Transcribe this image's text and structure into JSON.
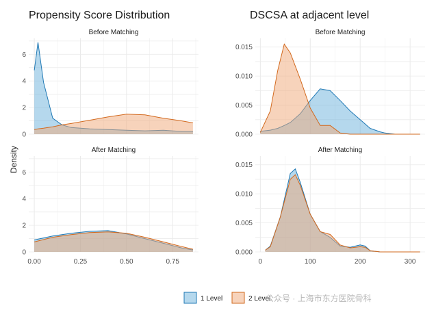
{
  "panels": {
    "left_title": "Propensity Score Distribution",
    "right_title": "DSCSA at adjacent level",
    "y_label": "Density",
    "watermark": "公众号 · 上海市东方医院骨科"
  },
  "colors": {
    "level1": "#5aa9d6",
    "level1_line": "#1f78b4",
    "level2": "#f0a878",
    "level2_line": "#d2691e"
  },
  "chart_data": [
    {
      "type": "area",
      "panel": "Propensity Score Distribution",
      "facet": "Before Matching",
      "x": [
        0.0,
        0.02,
        0.05,
        0.1,
        0.15,
        0.2,
        0.3,
        0.4,
        0.5,
        0.6,
        0.7,
        0.8,
        0.86
      ],
      "series": [
        {
          "name": "1 Level",
          "values": [
            4.8,
            6.9,
            3.9,
            1.2,
            0.7,
            0.5,
            0.4,
            0.35,
            0.3,
            0.25,
            0.3,
            0.2,
            0.2
          ]
        },
        {
          "name": "2 Level",
          "values": [
            0.35,
            0.4,
            0.45,
            0.55,
            0.7,
            0.8,
            1.05,
            1.3,
            1.5,
            1.45,
            1.2,
            1.0,
            0.85
          ]
        }
      ],
      "xlim": [
        -0.03,
        0.89
      ],
      "ylim": [
        0,
        7.2
      ],
      "yticks": [
        0,
        2,
        4,
        6
      ]
    },
    {
      "type": "area",
      "panel": "DSCSA at adjacent level",
      "facet": "Before Matching",
      "x": [
        0,
        20,
        35,
        48,
        60,
        80,
        100,
        120,
        140,
        160,
        180,
        200,
        220,
        240,
        250,
        260,
        270,
        280,
        300,
        320
      ],
      "series": [
        {
          "name": "1 Level",
          "values": [
            0.0005,
            0.0007,
            0.001,
            0.0015,
            0.002,
            0.0035,
            0.0058,
            0.0078,
            0.0075,
            0.0058,
            0.004,
            0.0025,
            0.001,
            0.0004,
            0.0002,
            0.0001,
            0.0,
            0.0,
            0.0,
            0.0
          ]
        },
        {
          "name": "2 Level",
          "values": [
            0.0003,
            0.004,
            0.011,
            0.0155,
            0.014,
            0.0095,
            0.0045,
            0.0015,
            0.0015,
            0.0002,
            0.0,
            0.0,
            0.0,
            0.0,
            0.0,
            0.0,
            0.0,
            0.0,
            0.0,
            0.0
          ]
        }
      ],
      "xlim": [
        -10,
        330
      ],
      "ylim": [
        0,
        0.0165
      ],
      "yticks": [
        0.0,
        0.005,
        0.01,
        0.015
      ]
    },
    {
      "type": "area",
      "panel": "Propensity Score Distribution",
      "facet": "After Matching",
      "x": [
        0.0,
        0.1,
        0.2,
        0.3,
        0.4,
        0.5,
        0.6,
        0.7,
        0.8,
        0.86
      ],
      "series": [
        {
          "name": "1 Level",
          "values": [
            0.9,
            1.2,
            1.4,
            1.55,
            1.6,
            1.35,
            1.0,
            0.65,
            0.3,
            0.15
          ]
        },
        {
          "name": "2 Level",
          "values": [
            0.75,
            1.1,
            1.3,
            1.45,
            1.5,
            1.4,
            1.1,
            0.75,
            0.4,
            0.2
          ]
        }
      ],
      "xlim": [
        -0.03,
        0.89
      ],
      "ylim": [
        0,
        7.2
      ],
      "xticks": [
        "0.00",
        "0.25",
        "0.50",
        "0.75"
      ],
      "yticks": [
        0,
        2,
        4,
        6
      ]
    },
    {
      "type": "area",
      "panel": "DSCSA at adjacent level",
      "facet": "After Matching",
      "x": [
        10,
        20,
        40,
        60,
        70,
        80,
        100,
        120,
        140,
        160,
        180,
        200,
        210,
        220,
        240,
        260,
        280,
        300,
        320
      ],
      "series": [
        {
          "name": "1 Level",
          "values": [
            0.0003,
            0.001,
            0.006,
            0.0135,
            0.0143,
            0.012,
            0.0065,
            0.0035,
            0.0025,
            0.001,
            0.0008,
            0.0012,
            0.001,
            0.0002,
            0.0,
            0.0,
            0.0,
            0.0,
            0.0
          ]
        },
        {
          "name": "2 Level",
          "values": [
            0.0003,
            0.0009,
            0.006,
            0.0125,
            0.0133,
            0.0115,
            0.0065,
            0.0035,
            0.003,
            0.0012,
            0.0007,
            0.0009,
            0.0008,
            0.0002,
            0.0,
            0.0,
            0.0,
            0.0,
            0.0
          ]
        }
      ],
      "xlim": [
        -10,
        330
      ],
      "ylim": [
        0,
        0.0165
      ],
      "xticks": [
        "0",
        "100",
        "200",
        "300"
      ],
      "yticks": [
        0.0,
        0.005,
        0.01,
        0.015
      ]
    }
  ],
  "legend": [
    {
      "label": "1 Level"
    },
    {
      "label": "2 Level"
    }
  ]
}
